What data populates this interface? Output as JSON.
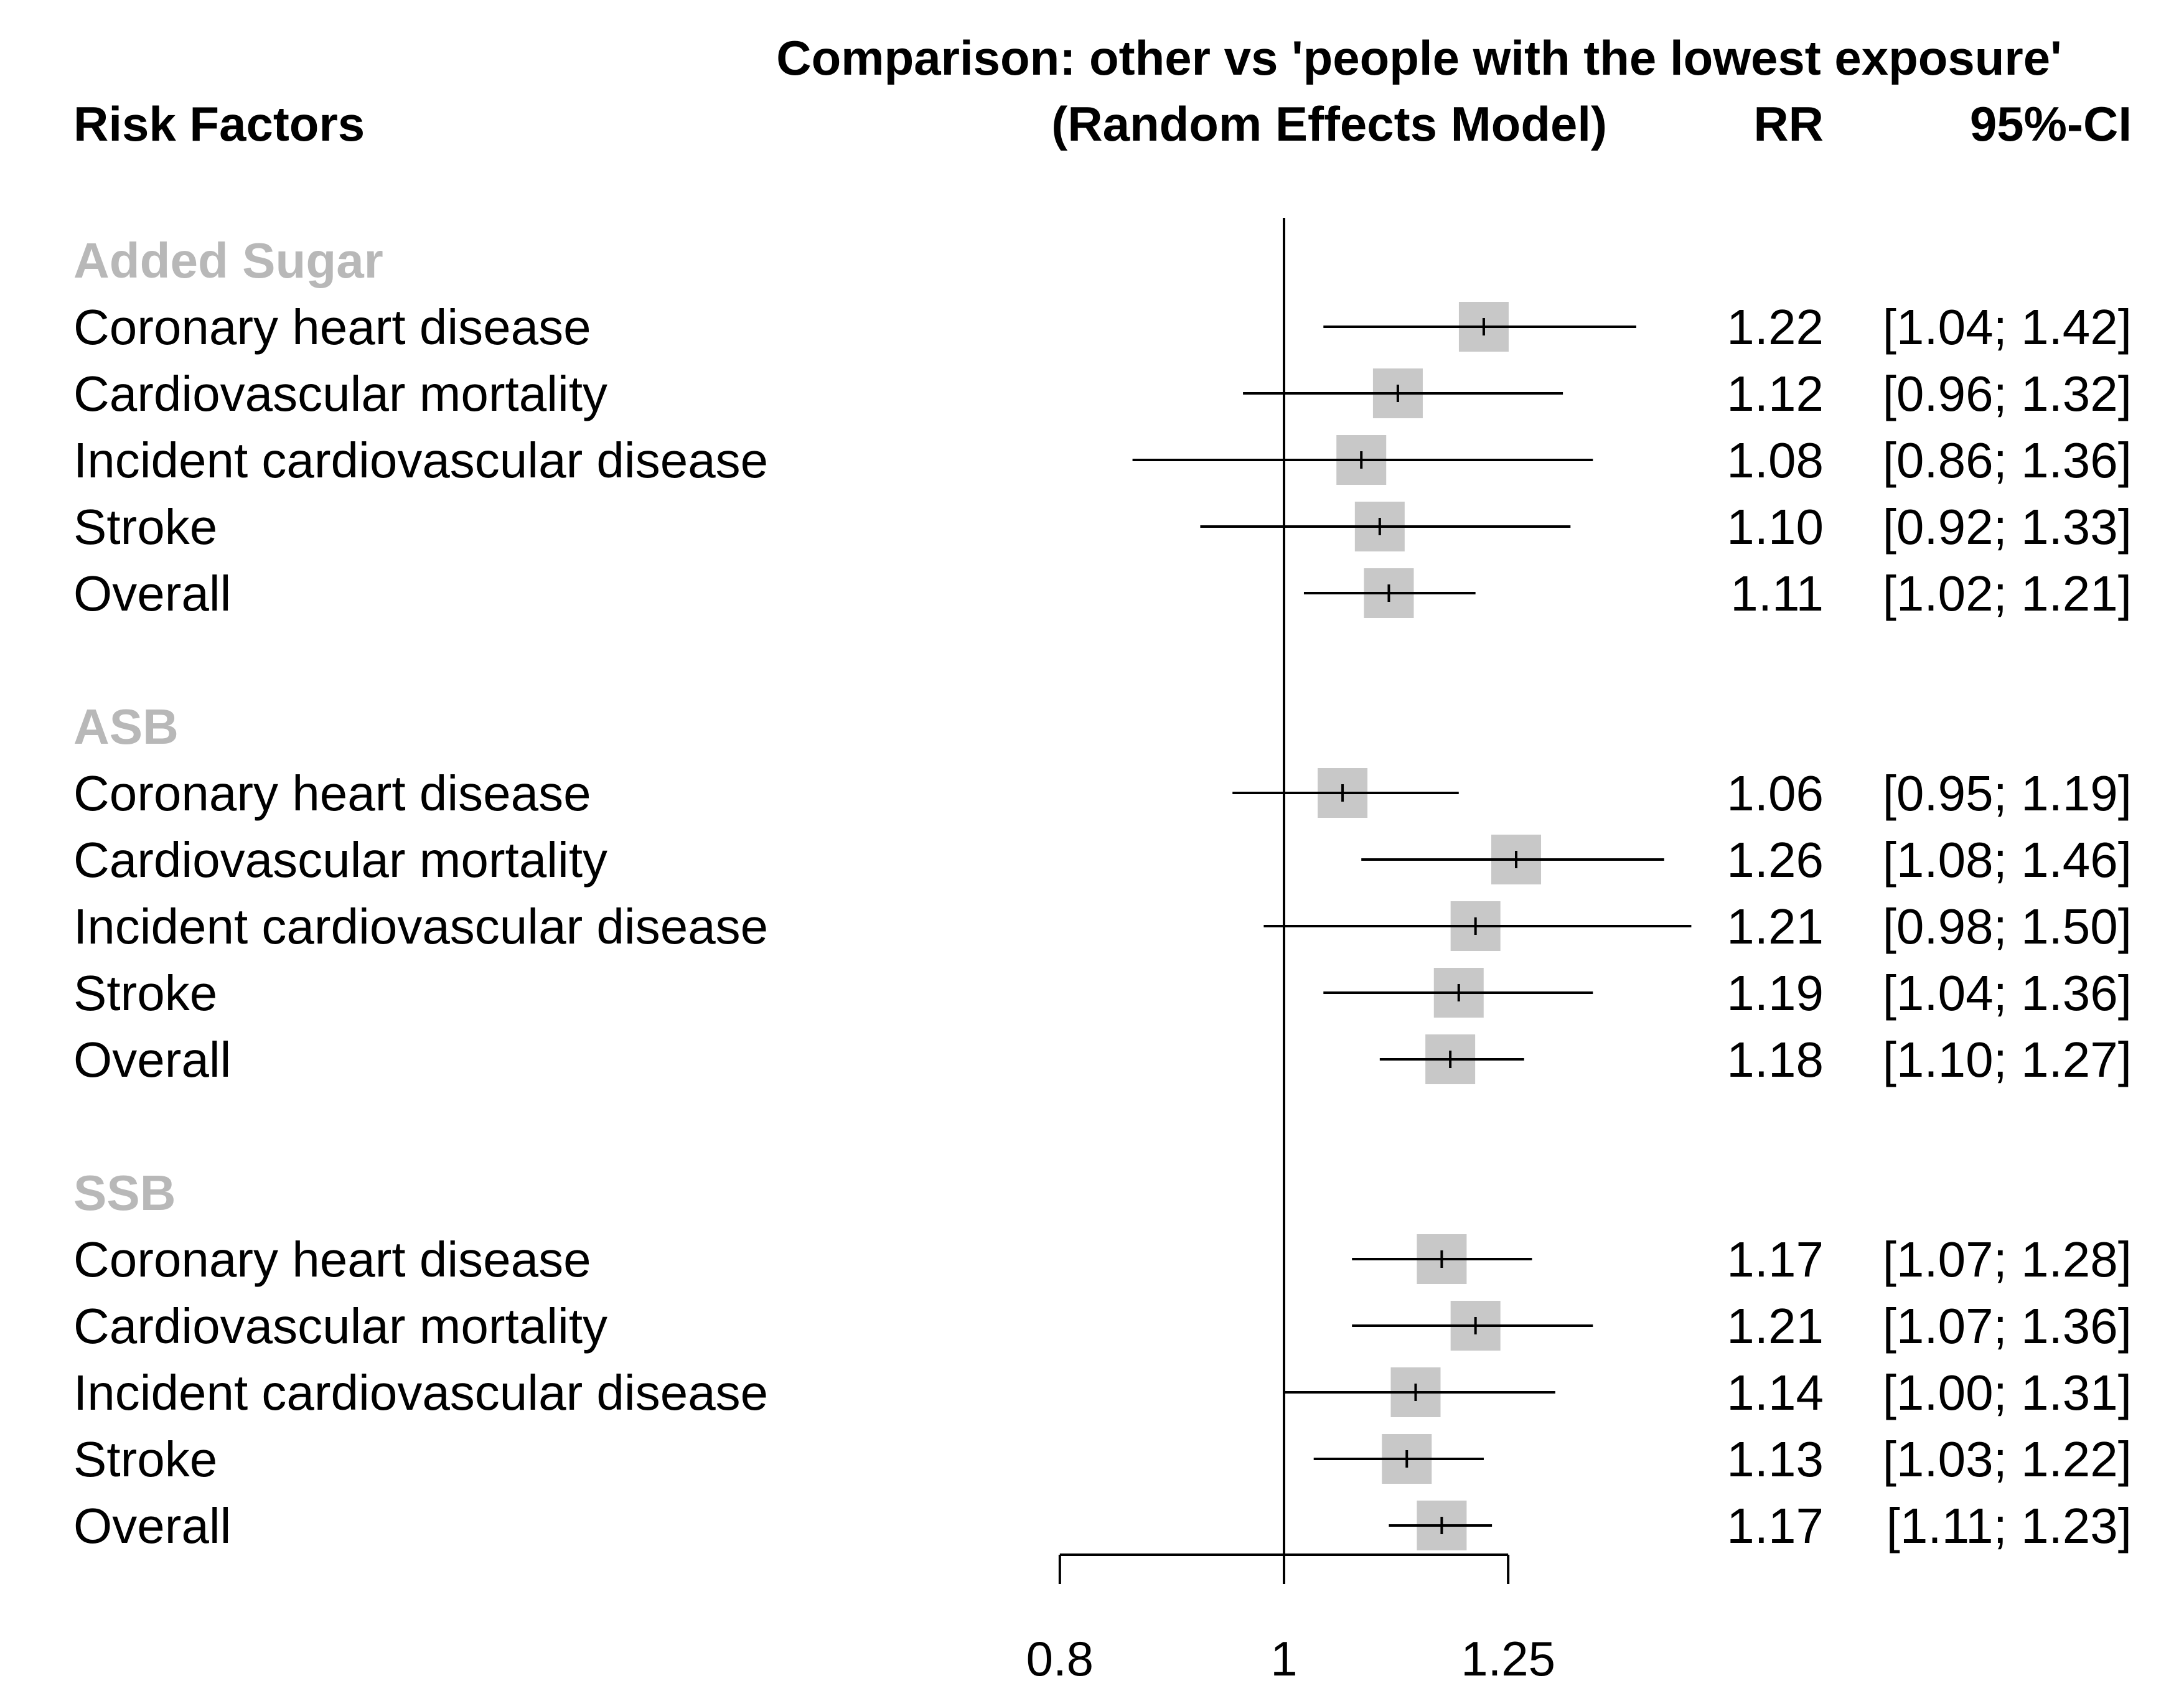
{
  "chart_data": {
    "type": "forest",
    "title": "Comparison: other vs 'people with the lowest exposure'",
    "subtitle": "(Random Effects Model)",
    "column_headers": {
      "label": "Risk Factors",
      "estimate": "RR",
      "ci": "95%-CI"
    },
    "x_scale": "log",
    "xlim": [
      0.8,
      1.25
    ],
    "reference_line": 1,
    "x_ticks": [
      {
        "value": 0.8,
        "label": "0.8"
      },
      {
        "value": 1,
        "label": "1"
      },
      {
        "value": 1.25,
        "label": "1.25"
      }
    ],
    "groups": [
      {
        "name": "Added Sugar",
        "rows": [
          {
            "label": "Coronary heart disease",
            "rr": 1.22,
            "lo": 1.04,
            "hi": 1.42,
            "rr_text": "1.22",
            "ci_text": "[1.04; 1.42]"
          },
          {
            "label": "Cardiovascular mortality",
            "rr": 1.12,
            "lo": 0.96,
            "hi": 1.32,
            "rr_text": "1.12",
            "ci_text": "[0.96; 1.32]"
          },
          {
            "label": "Incident cardiovascular disease",
            "rr": 1.08,
            "lo": 0.86,
            "hi": 1.36,
            "rr_text": "1.08",
            "ci_text": "[0.86; 1.36]"
          },
          {
            "label": "Stroke",
            "rr": 1.1,
            "lo": 0.92,
            "hi": 1.33,
            "rr_text": "1.10",
            "ci_text": "[0.92; 1.33]"
          },
          {
            "label": "Overall",
            "rr": 1.11,
            "lo": 1.02,
            "hi": 1.21,
            "rr_text": "1.11",
            "ci_text": "[1.02; 1.21]"
          }
        ]
      },
      {
        "name": "ASB",
        "rows": [
          {
            "label": "Coronary heart disease",
            "rr": 1.06,
            "lo": 0.95,
            "hi": 1.19,
            "rr_text": "1.06",
            "ci_text": "[0.95; 1.19]"
          },
          {
            "label": "Cardiovascular mortality",
            "rr": 1.26,
            "lo": 1.08,
            "hi": 1.46,
            "rr_text": "1.26",
            "ci_text": "[1.08; 1.46]"
          },
          {
            "label": "Incident cardiovascular disease",
            "rr": 1.21,
            "lo": 0.98,
            "hi": 1.5,
            "rr_text": "1.21",
            "ci_text": "[0.98; 1.50]"
          },
          {
            "label": "Stroke",
            "rr": 1.19,
            "lo": 1.04,
            "hi": 1.36,
            "rr_text": "1.19",
            "ci_text": "[1.04; 1.36]"
          },
          {
            "label": "Overall",
            "rr": 1.18,
            "lo": 1.1,
            "hi": 1.27,
            "rr_text": "1.18",
            "ci_text": "[1.10; 1.27]"
          }
        ]
      },
      {
        "name": "SSB",
        "rows": [
          {
            "label": "Coronary heart disease",
            "rr": 1.17,
            "lo": 1.07,
            "hi": 1.28,
            "rr_text": "1.17",
            "ci_text": "[1.07; 1.28]"
          },
          {
            "label": "Cardiovascular mortality",
            "rr": 1.21,
            "lo": 1.07,
            "hi": 1.36,
            "rr_text": "1.21",
            "ci_text": "[1.07; 1.36]"
          },
          {
            "label": "Incident cardiovascular disease",
            "rr": 1.14,
            "lo": 1.0,
            "hi": 1.31,
            "rr_text": "1.14",
            "ci_text": "[1.00; 1.31]"
          },
          {
            "label": "Stroke",
            "rr": 1.13,
            "lo": 1.03,
            "hi": 1.22,
            "rr_text": "1.13",
            "ci_text": "[1.03; 1.22]"
          },
          {
            "label": "Overall",
            "rr": 1.17,
            "lo": 1.11,
            "hi": 1.23,
            "rr_text": "1.17",
            "ci_text": "[1.11; 1.23]"
          }
        ]
      }
    ],
    "colors": {
      "box": "#c8c8c8",
      "line": "#000000",
      "group_label": "#b8b8b8"
    }
  }
}
